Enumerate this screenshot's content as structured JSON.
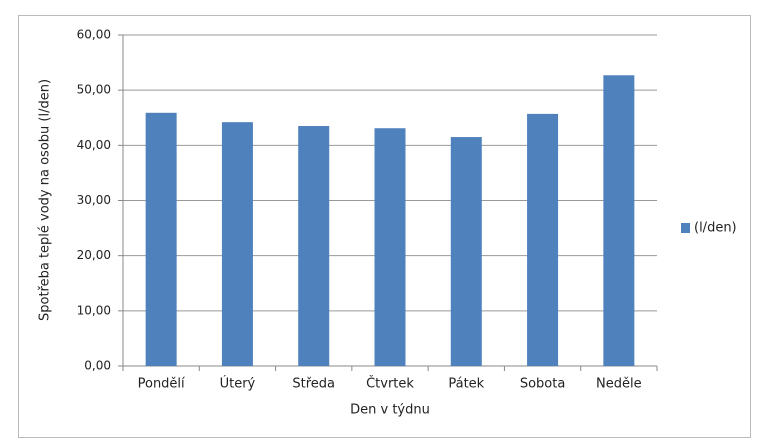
{
  "chart_data": {
    "type": "bar",
    "categories": [
      "Pondělí",
      "Úterý",
      "Středa",
      "Čtvrtek",
      "Pátek",
      "Sobota",
      "Neděle"
    ],
    "series": [
      {
        "name": "(l/den)",
        "color": "#4f81bd",
        "values": [
          45.9,
          44.2,
          43.5,
          43.1,
          41.5,
          45.7,
          52.7
        ]
      }
    ],
    "x_label": "Den v týdnu",
    "y_label": "Spotřeba teplé vody na osobu (l/den)",
    "ylim": [
      0,
      60
    ],
    "yticks": [
      {
        "value": 0,
        "label": "0,00"
      },
      {
        "value": 10,
        "label": "10,00"
      },
      {
        "value": 20,
        "label": "20,00"
      },
      {
        "value": 30,
        "label": "30,00"
      },
      {
        "value": 40,
        "label": "40,00"
      },
      {
        "value": 50,
        "label": "50,00"
      },
      {
        "value": 60,
        "label": "60,00"
      }
    ],
    "grid": true,
    "legend": "right"
  }
}
